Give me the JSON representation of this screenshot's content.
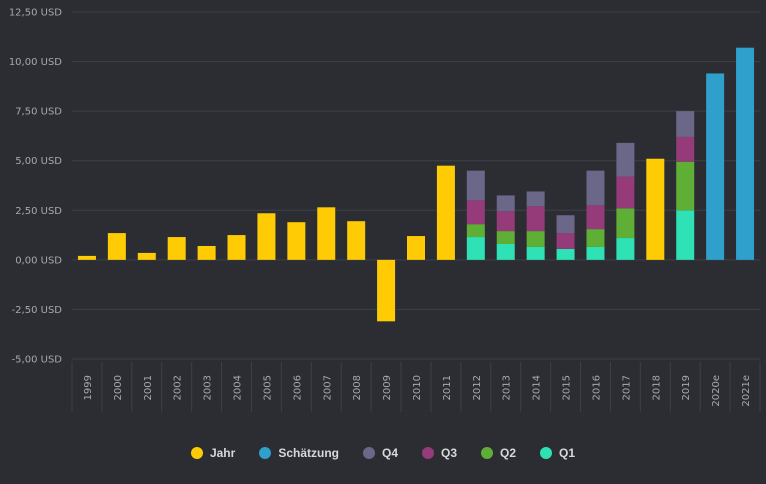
{
  "chart_data": {
    "type": "bar",
    "stacked": true,
    "categories": [
      "1999",
      "2000",
      "2001",
      "2002",
      "2003",
      "2004",
      "2005",
      "2006",
      "2007",
      "2008",
      "2009",
      "2010",
      "2011",
      "2012",
      "2013",
      "2014",
      "2015",
      "2016",
      "2017",
      "2018",
      "2019",
      "2020e",
      "2021e"
    ],
    "y_ticks": [
      "12,50 USD",
      "10,00 USD",
      "7,50 USD",
      "5,00 USD",
      "2,50 USD",
      "0,00 USD",
      "-2,50 USD",
      "-5,00 USD"
    ],
    "ylim": [
      -5,
      12.5
    ],
    "grid": true,
    "legend_position": "bottom",
    "series": [
      {
        "name": "Jahr",
        "color": "#ffcb05",
        "values": [
          0.2,
          1.35,
          0.35,
          1.15,
          0.7,
          1.25,
          2.35,
          1.9,
          2.65,
          1.95,
          -3.1,
          1.2,
          4.75,
          null,
          null,
          null,
          null,
          null,
          null,
          5.1,
          null,
          null,
          null
        ]
      },
      {
        "name": "Schätzung",
        "color": "#2f9fcb",
        "values": [
          null,
          null,
          null,
          null,
          null,
          null,
          null,
          null,
          null,
          null,
          null,
          null,
          null,
          null,
          null,
          null,
          null,
          null,
          null,
          null,
          null,
          9.4,
          10.7
        ]
      },
      {
        "name": "Q1",
        "color": "#2ee2b5",
        "values": [
          null,
          null,
          null,
          null,
          null,
          null,
          null,
          null,
          null,
          null,
          null,
          null,
          null,
          1.15,
          0.8,
          0.65,
          0.55,
          0.65,
          1.1,
          null,
          2.5,
          null,
          null
        ]
      },
      {
        "name": "Q2",
        "color": "#5fae35",
        "values": [
          null,
          null,
          null,
          null,
          null,
          null,
          null,
          null,
          null,
          null,
          null,
          null,
          null,
          0.65,
          0.65,
          0.8,
          0.0,
          0.9,
          1.5,
          null,
          2.45,
          null,
          null
        ]
      },
      {
        "name": "Q3",
        "color": "#953b7a",
        "values": [
          null,
          null,
          null,
          null,
          null,
          null,
          null,
          null,
          null,
          null,
          null,
          null,
          null,
          1.2,
          1.0,
          1.25,
          0.8,
          1.2,
          1.6,
          null,
          1.25,
          null,
          null
        ]
      },
      {
        "name": "Q4",
        "color": "#6a6788",
        "values": [
          null,
          null,
          null,
          null,
          null,
          null,
          null,
          null,
          null,
          null,
          null,
          null,
          null,
          1.5,
          0.8,
          0.75,
          0.9,
          1.75,
          1.7,
          null,
          1.3,
          null,
          null
        ]
      }
    ],
    "legend": [
      {
        "name": "Jahr",
        "color": "#ffcb05"
      },
      {
        "name": "Schätzung",
        "color": "#2f9fcb"
      },
      {
        "name": "Q4",
        "color": "#6a6788"
      },
      {
        "name": "Q3",
        "color": "#953b7a"
      },
      {
        "name": "Q2",
        "color": "#5fae35"
      },
      {
        "name": "Q1",
        "color": "#2ee2b5"
      }
    ]
  }
}
